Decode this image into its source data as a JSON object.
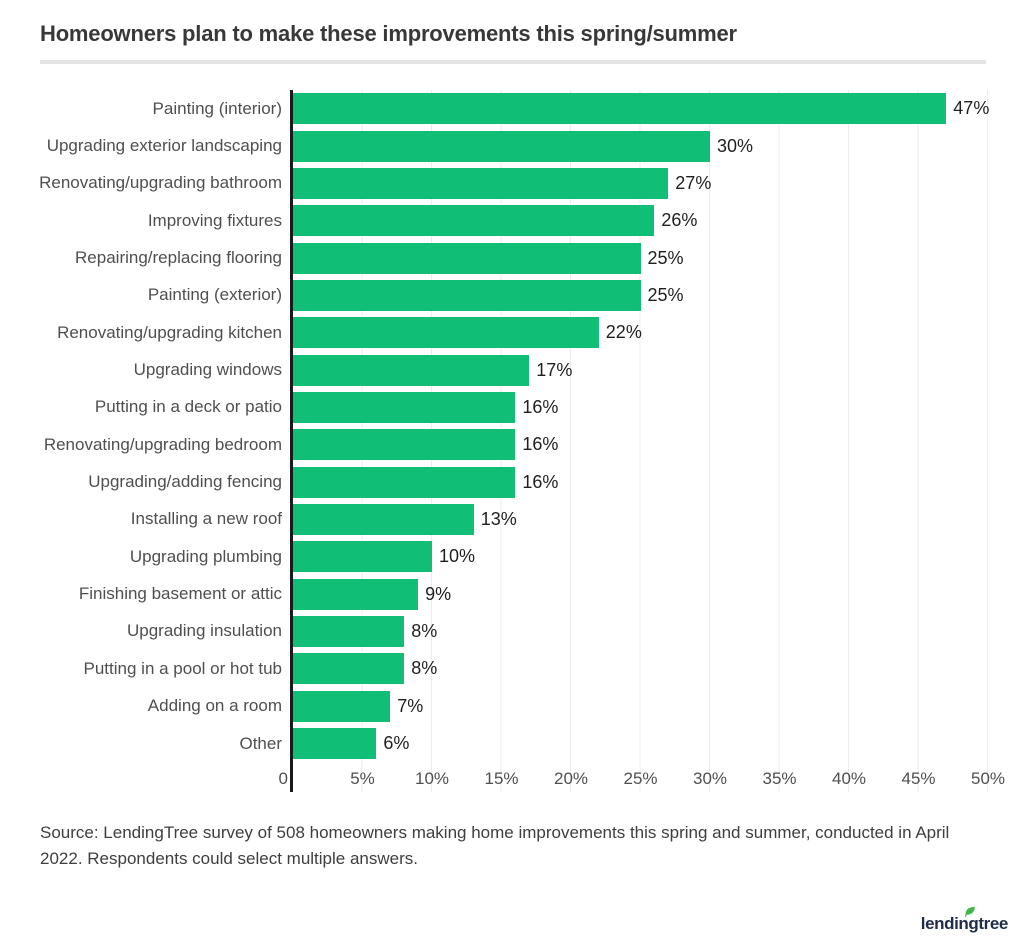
{
  "header": {
    "title": "Homeowners plan to make these improvements this spring/summer"
  },
  "chart_data": {
    "type": "bar",
    "orientation": "horizontal",
    "title": "Homeowners plan to make these improvements this spring/summer",
    "categories": [
      "Painting (interior)",
      "Upgrading exterior landscaping",
      "Renovating/upgrading bathroom",
      "Improving fixtures",
      "Repairing/replacing flooring",
      "Painting (exterior)",
      "Renovating/upgrading kitchen",
      "Upgrading windows",
      "Putting in a deck or patio",
      "Renovating/upgrading bedroom",
      "Upgrading/adding fencing",
      "Installing a new roof",
      "Upgrading plumbing",
      "Finishing basement or attic",
      "Upgrading insulation",
      "Putting in a pool or hot tub",
      "Adding on a room",
      "Other"
    ],
    "values": [
      47,
      30,
      27,
      26,
      25,
      25,
      22,
      17,
      16,
      16,
      16,
      13,
      10,
      9,
      8,
      8,
      7,
      6
    ],
    "value_labels": [
      "47%",
      "30%",
      "27%",
      "26%",
      "25%",
      "25%",
      "22%",
      "17%",
      "16%",
      "16%",
      "16%",
      "13%",
      "10%",
      "9%",
      "8%",
      "8%",
      "7%",
      "6%"
    ],
    "x_tick_labels": [
      "0",
      "5%",
      "10%",
      "15%",
      "20%",
      "25%",
      "30%",
      "35%",
      "40%",
      "45%",
      "50%"
    ],
    "xlim": [
      0,
      50
    ],
    "grid": "vertical-light",
    "legend": "none",
    "bar_color": "#10BE76",
    "axis_line_color": "#1a1a1a",
    "grid_color": "#ececec"
  },
  "footer": {
    "source": "Source: LendingTree survey of 508 homeowners making home improvements this spring and summer, conducted in April 2022. Respondents could select multiple answers.",
    "logo_text": "lendingtree"
  },
  "brand": {
    "logo_navy": "#1E2C49",
    "leaf_green": "#3FB54A"
  }
}
